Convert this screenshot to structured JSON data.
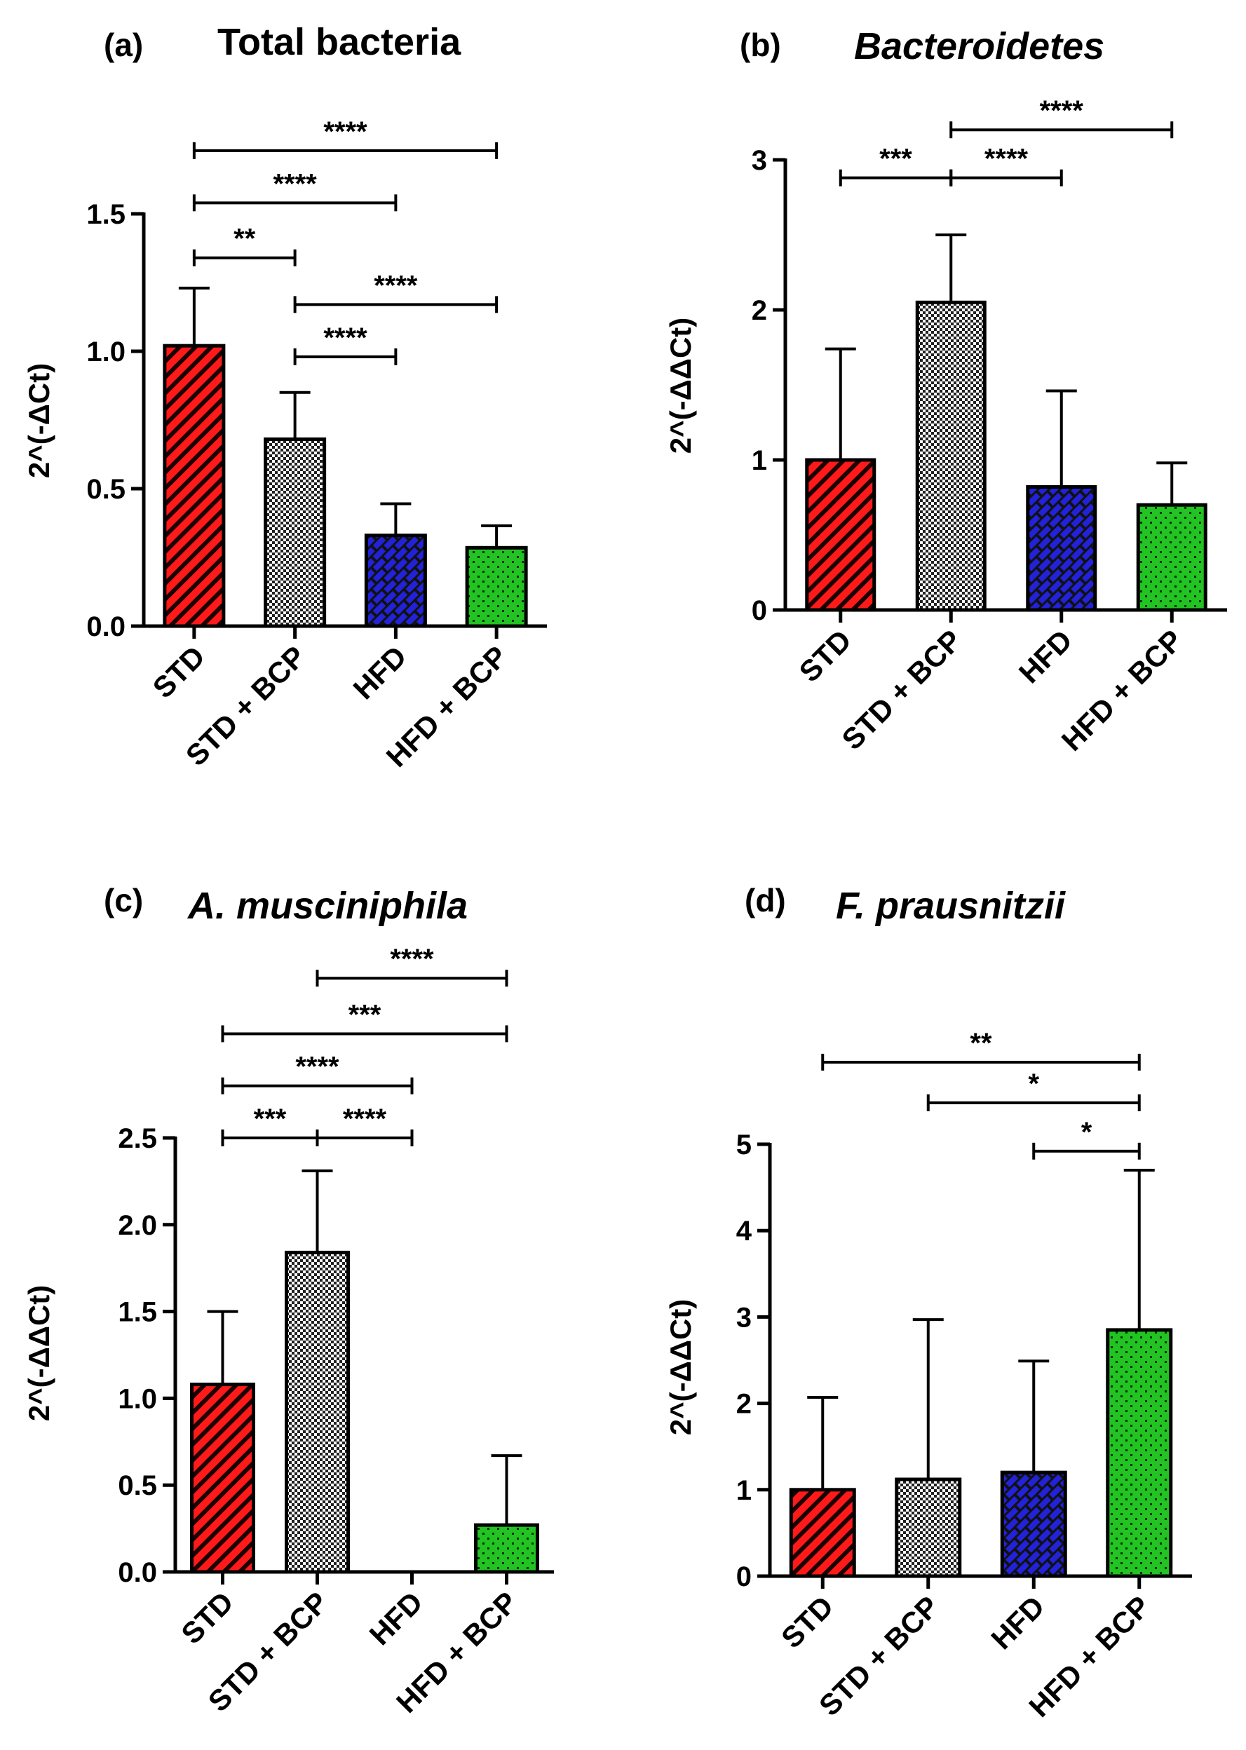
{
  "colors": {
    "STD": "#ff1a1a",
    "STD + BCP": "#bdbdbd",
    "HFD": "#2222d8",
    "HFD + BCP": "#22c322",
    "axis": "#000000"
  },
  "chart_data": [
    {
      "type": "bar",
      "panel": "(a)",
      "title": "Total bacteria",
      "title_italic": false,
      "ylabel": "2^(-ΔCt)",
      "xlabel": "",
      "categories": [
        "STD",
        "STD + BCP",
        "HFD",
        "HFD + BCP"
      ],
      "values": [
        1.02,
        0.68,
        0.33,
        0.285
      ],
      "error_upper": [
        1.23,
        0.85,
        0.445,
        0.365
      ],
      "ylim": [
        0,
        1.5
      ],
      "yticks": [
        0.0,
        0.5,
        1.0,
        1.5
      ],
      "ytick_labels": [
        "0.0",
        "0.5",
        "1.0",
        "1.5"
      ],
      "grid": false,
      "significance": [
        {
          "from": 0,
          "to": 1,
          "label": "**",
          "level": 1.34
        },
        {
          "from": 0,
          "to": 2,
          "label": "****",
          "level": 1.54
        },
        {
          "from": 0,
          "to": 3,
          "label": "****",
          "level": 1.73
        },
        {
          "from": 1,
          "to": 2,
          "label": "****",
          "level": 0.98
        },
        {
          "from": 1,
          "to": 3,
          "label": "****",
          "level": 1.17
        }
      ]
    },
    {
      "type": "bar",
      "panel": "(b)",
      "title": "Bacteroidetes",
      "title_italic": true,
      "ylabel": "2^(-ΔΔCt)",
      "xlabel": "",
      "categories": [
        "STD",
        "STD + BCP",
        "HFD",
        "HFD + BCP"
      ],
      "values": [
        1.0,
        2.05,
        0.82,
        0.7
      ],
      "error_upper": [
        1.74,
        2.5,
        1.46,
        0.98
      ],
      "ylim": [
        0,
        3
      ],
      "yticks": [
        0,
        1,
        2,
        3
      ],
      "ytick_labels": [
        "0",
        "1",
        "2",
        "3"
      ],
      "grid": false,
      "significance": [
        {
          "from": 0,
          "to": 1,
          "label": "***",
          "level": 2.88
        },
        {
          "from": 1,
          "to": 2,
          "label": "****",
          "level": 2.88
        },
        {
          "from": 1,
          "to": 3,
          "label": "****",
          "level": 3.2
        }
      ]
    },
    {
      "type": "bar",
      "panel": "(c)",
      "title": "A. musciniphila",
      "title_italic": true,
      "ylabel": "2^(-ΔΔCt)",
      "xlabel": "",
      "categories": [
        "STD",
        "STD + BCP",
        "HFD",
        "HFD + BCP"
      ],
      "values": [
        1.08,
        1.84,
        0.0,
        0.27
      ],
      "error_upper": [
        1.5,
        2.31,
        0.0,
        0.67
      ],
      "ylim": [
        0,
        2.5
      ],
      "yticks": [
        0.0,
        0.5,
        1.0,
        1.5,
        2.0,
        2.5
      ],
      "ytick_labels": [
        "0.0",
        "0.5",
        "1.0",
        "1.5",
        "2.0",
        "2.5"
      ],
      "grid": false,
      "significance": [
        {
          "from": 0,
          "to": 1,
          "label": "***",
          "level": 2.5
        },
        {
          "from": 1,
          "to": 2,
          "label": "****",
          "level": 2.5
        },
        {
          "from": 0,
          "to": 2,
          "label": "****",
          "level": 2.8
        },
        {
          "from": 0,
          "to": 3,
          "label": "***",
          "level": 3.1
        },
        {
          "from": 1,
          "to": 3,
          "label": "****",
          "level": 3.42
        }
      ]
    },
    {
      "type": "bar",
      "panel": "(d)",
      "title": "F. prausnitzii",
      "title_italic": true,
      "ylabel": "2^(-ΔΔCt)",
      "xlabel": "",
      "categories": [
        "STD",
        "STD + BCP",
        "HFD",
        "HFD + BCP"
      ],
      "values": [
        1.0,
        1.12,
        1.2,
        2.85
      ],
      "error_upper": [
        2.07,
        2.97,
        2.49,
        4.7
      ],
      "ylim": [
        0,
        5
      ],
      "yticks": [
        0,
        1,
        2,
        3,
        4,
        5
      ],
      "ytick_labels": [
        "0",
        "1",
        "2",
        "3",
        "4",
        "5"
      ],
      "grid": false,
      "significance": [
        {
          "from": 2,
          "to": 3,
          "label": "*",
          "level": 4.92
        },
        {
          "from": 1,
          "to": 3,
          "label": "*",
          "level": 5.48
        },
        {
          "from": 0,
          "to": 3,
          "label": "**",
          "level": 5.95
        }
      ]
    }
  ]
}
